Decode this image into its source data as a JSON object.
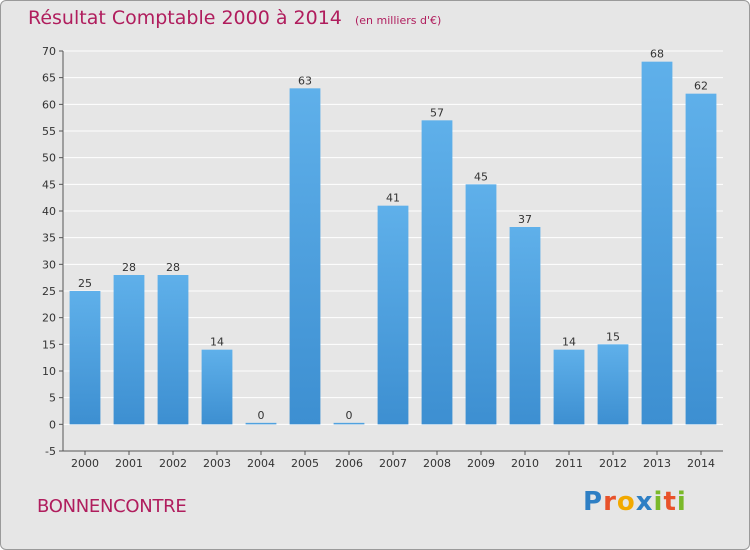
{
  "header": {
    "title": "Résultat Comptable 2000 à 2014",
    "subtitle": "(en milliers d'€)"
  },
  "footer": {
    "commune": "BONNENCONTRE",
    "logo_letters": [
      "P",
      "r",
      "o",
      "x",
      "i",
      "t",
      "i"
    ],
    "logo_colors": [
      "#2e7fc4",
      "#e8522a",
      "#f2a900",
      "#2e7fc4",
      "#7ab929",
      "#e8522a",
      "#7ab929"
    ]
  },
  "colors": {
    "bar": "#3d8fd1",
    "bar_light": "#5fb0ea",
    "title": "#b01d5d",
    "plot_bg": "#e6e6e6",
    "grid": "#ffffff"
  },
  "chart_data": {
    "type": "bar",
    "categories": [
      "2000",
      "2001",
      "2002",
      "2003",
      "2004",
      "2005",
      "2006",
      "2007",
      "2008",
      "2009",
      "2010",
      "2011",
      "2012",
      "2013",
      "2014"
    ],
    "values": [
      25,
      28,
      28,
      14,
      0,
      63,
      0,
      41,
      57,
      45,
      37,
      14,
      15,
      68,
      62
    ],
    "y_ticks": [
      "-5",
      "0",
      "5",
      "10",
      "15",
      "20",
      "25",
      "30",
      "35",
      "40",
      "45",
      "50",
      "55",
      "60",
      "65",
      "70"
    ],
    "ylim": [
      -5,
      70
    ],
    "grid": true,
    "legend": "none"
  }
}
